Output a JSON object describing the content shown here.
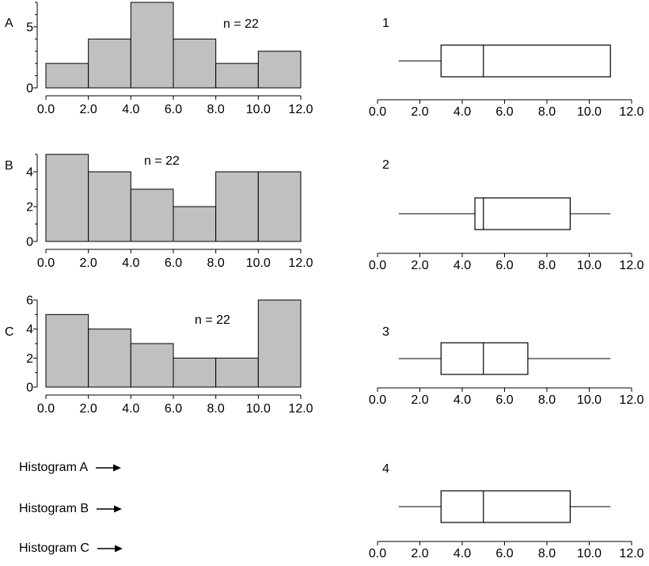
{
  "chart_data": [
    {
      "type": "bar",
      "panel_letter": "A",
      "annotation": "n = 22",
      "bin_edges": [
        0,
        2,
        4,
        6,
        8,
        10,
        12
      ],
      "x_tick_labels": [
        "0.0",
        "2.0",
        "4.0",
        "6.0",
        "8.0",
        "10.0",
        "12.0"
      ],
      "values": [
        2,
        4,
        7,
        4,
        2,
        3
      ],
      "ylim": [
        0,
        7
      ],
      "y_tick_labels": [
        "0",
        "5"
      ],
      "y_major_ticks": [
        0,
        5
      ],
      "y_minor_ticks": [
        1,
        2,
        3,
        4,
        6,
        7
      ],
      "bar_color": "#c0c0c0"
    },
    {
      "type": "bar",
      "panel_letter": "B",
      "annotation": "n = 22",
      "bin_edges": [
        0,
        2,
        4,
        6,
        8,
        10,
        12
      ],
      "x_tick_labels": [
        "0.0",
        "2.0",
        "4.0",
        "6.0",
        "8.0",
        "10.0",
        "12.0"
      ],
      "values": [
        5,
        4,
        3,
        2,
        4,
        4
      ],
      "ylim": [
        0,
        5
      ],
      "y_tick_labels": [
        "0",
        "2",
        "4"
      ],
      "y_major_ticks": [
        0,
        2,
        4
      ],
      "y_minor_ticks": [
        1,
        3,
        5
      ],
      "bar_color": "#c0c0c0"
    },
    {
      "type": "bar",
      "panel_letter": "C",
      "annotation": "n = 22",
      "bin_edges": [
        0,
        2,
        4,
        6,
        8,
        10,
        12
      ],
      "x_tick_labels": [
        "0.0",
        "2.0",
        "4.0",
        "6.0",
        "8.0",
        "10.0",
        "12.0"
      ],
      "values": [
        5,
        4,
        3,
        2,
        2,
        6
      ],
      "ylim": [
        0,
        6
      ],
      "y_tick_labels": [
        "0",
        "2",
        "4",
        "6"
      ],
      "y_major_ticks": [
        0,
        2,
        4,
        6
      ],
      "y_minor_ticks": [
        1,
        3,
        5
      ],
      "bar_color": "#c0c0c0"
    },
    {
      "type": "boxplot",
      "panel_number": "1",
      "min": 1,
      "q1": 3,
      "median": 5,
      "q3": 11,
      "max": 11,
      "xlim": [
        0,
        12
      ],
      "x_ticks": [
        0,
        2,
        4,
        6,
        8,
        10,
        12
      ],
      "x_tick_labels": [
        "0.0",
        "2.0",
        "4.0",
        "6.0",
        "8.0",
        "10.0",
        "12.0"
      ]
    },
    {
      "type": "boxplot",
      "panel_number": "2",
      "min": 1,
      "q1": 4.6,
      "median": 5,
      "q3": 9.1,
      "max": 11,
      "xlim": [
        0,
        12
      ],
      "x_ticks": [
        0,
        2,
        4,
        6,
        8,
        10,
        12
      ],
      "x_tick_labels": [
        "0.0",
        "2.0",
        "4.0",
        "6.0",
        "8.0",
        "10.0",
        "12.0"
      ]
    },
    {
      "type": "boxplot",
      "panel_number": "3",
      "min": 1,
      "q1": 3,
      "median": 5,
      "q3": 7.1,
      "max": 11,
      "xlim": [
        0,
        12
      ],
      "x_ticks": [
        0,
        2,
        4,
        6,
        8,
        10,
        12
      ],
      "x_tick_labels": [
        "0.0",
        "2.0",
        "4.0",
        "6.0",
        "8.0",
        "10.0",
        "12.0"
      ]
    },
    {
      "type": "boxplot",
      "panel_number": "4",
      "min": 1,
      "q1": 3,
      "median": 5,
      "q3": 9.1,
      "max": 11,
      "xlim": [
        0,
        12
      ],
      "x_ticks": [
        0,
        2,
        4,
        6,
        8,
        10,
        12
      ],
      "x_tick_labels": [
        "0.0",
        "2.0",
        "4.0",
        "6.0",
        "8.0",
        "10.0",
        "12.0"
      ]
    }
  ],
  "matching": {
    "rows": [
      {
        "label": "Histogram A",
        "icon": "arrow-right-icon"
      },
      {
        "label": "Histogram B",
        "icon": "arrow-right-icon"
      },
      {
        "label": "Histogram C",
        "icon": "arrow-right-icon"
      }
    ]
  }
}
